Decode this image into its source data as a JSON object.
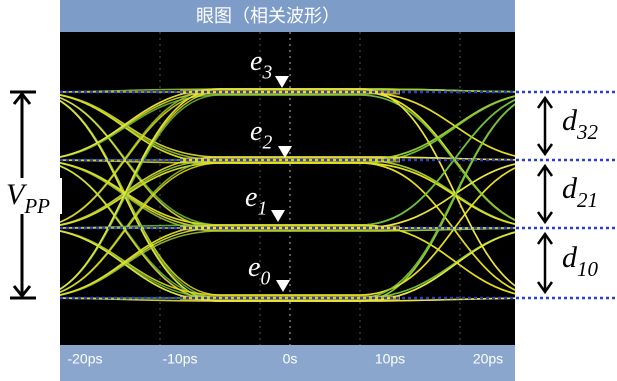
{
  "title": "眼图（相关波形）",
  "x_axis_labels": [
    "-20ps",
    "-10ps",
    "0s",
    "10ps",
    "20ps"
  ],
  "levels": [
    {
      "symbol": "e",
      "index": "3"
    },
    {
      "symbol": "e",
      "index": "2"
    },
    {
      "symbol": "e",
      "index": "1"
    },
    {
      "symbol": "e",
      "index": "0"
    }
  ],
  "spacings": [
    {
      "symbol": "d",
      "index": "32"
    },
    {
      "symbol": "d",
      "index": "21"
    },
    {
      "symbol": "d",
      "index": "10"
    }
  ],
  "amplitude": {
    "symbol": "V",
    "index": "PP"
  }
}
